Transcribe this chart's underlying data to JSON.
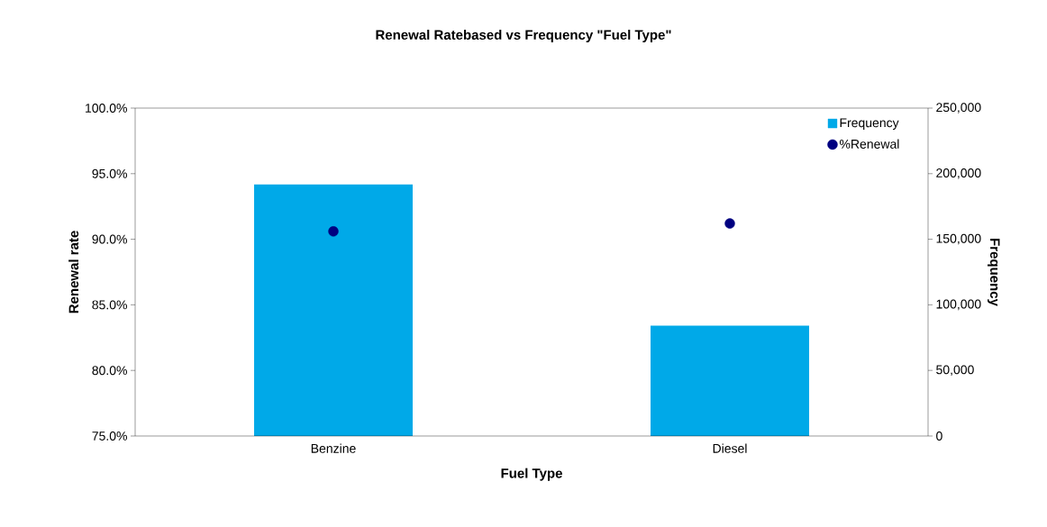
{
  "chart_data": {
    "type": "bar",
    "title": "Renewal Ratebased vs Frequency \"Fuel Type\"",
    "xlabel": "Fuel Type",
    "ylabel": "Renewal rate",
    "y2label": "Frequency",
    "categories": [
      "Benzine",
      "Diesel"
    ],
    "series": [
      {
        "name": "Frequency",
        "axis": "y2",
        "color": "#00a9e8",
        "values": [
          191800,
          84200
        ]
      },
      {
        "name": "%Renewal",
        "type": "scatter",
        "color": "#000080",
        "values": [
          90.6,
          91.2
        ]
      }
    ],
    "ylim": [
      75,
      100
    ],
    "yticks": [
      {
        "value": 75,
        "label": "75.0%"
      },
      {
        "value": 80,
        "label": "80.0%"
      },
      {
        "value": 85,
        "label": "85.0%"
      },
      {
        "value": 90,
        "label": "90.0%"
      },
      {
        "value": 95,
        "label": "95.0%"
      },
      {
        "value": 100,
        "label": "100.0%"
      }
    ],
    "y2lim": [
      0,
      250000
    ],
    "y2ticks": [
      {
        "value": 0,
        "label": "0"
      },
      {
        "value": 50000,
        "label": "50,000"
      },
      {
        "value": 100000,
        "label": "100,000"
      },
      {
        "value": 150000,
        "label": "150,000"
      },
      {
        "value": 200000,
        "label": "200,000"
      },
      {
        "value": 250000,
        "label": "250,000"
      }
    ],
    "legend": "top right",
    "marker": "circle",
    "grid": false
  }
}
